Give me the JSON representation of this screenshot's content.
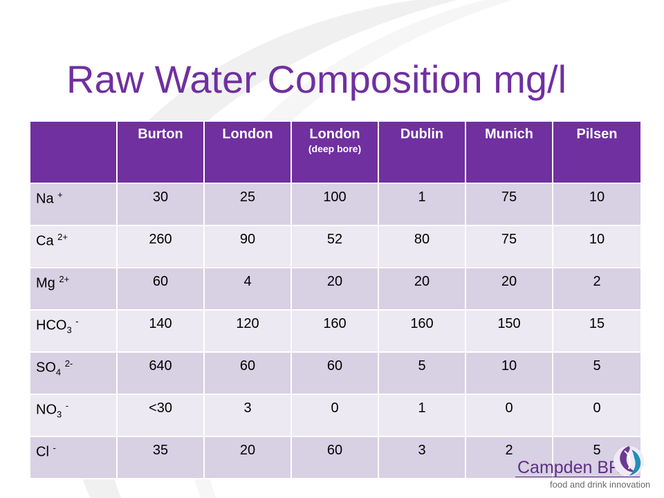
{
  "title": "Raw Water Composition mg/l",
  "header": {
    "corner": "",
    "columns": [
      {
        "label": "Burton",
        "sub": ""
      },
      {
        "label": "London",
        "sub": ""
      },
      {
        "label": "London",
        "sub": "(deep bore)"
      },
      {
        "label": "Dublin",
        "sub": ""
      },
      {
        "label": "Munich",
        "sub": ""
      },
      {
        "label": "Pilsen",
        "sub": ""
      }
    ]
  },
  "rows": [
    {
      "ion": {
        "base": "Na",
        "sub": "",
        "sup": "+"
      },
      "values": [
        "30",
        "25",
        "100",
        "1",
        "75",
        "10"
      ]
    },
    {
      "ion": {
        "base": "Ca",
        "sub": "",
        "sup": "2+"
      },
      "values": [
        "260",
        "90",
        "52",
        "80",
        "75",
        "10"
      ]
    },
    {
      "ion": {
        "base": "Mg",
        "sub": "",
        "sup": "2+"
      },
      "values": [
        "60",
        "4",
        "20",
        "20",
        "20",
        "2"
      ]
    },
    {
      "ion": {
        "base": "HCO",
        "sub": "3",
        "sup": "-"
      },
      "values": [
        "140",
        "120",
        "160",
        "160",
        "150",
        "15"
      ]
    },
    {
      "ion": {
        "base": "SO",
        "sub": "4",
        "sup": "2-"
      },
      "values": [
        "640",
        "60",
        "60",
        "5",
        "10",
        "5"
      ]
    },
    {
      "ion": {
        "base": "NO",
        "sub": "3",
        "sup": "-"
      },
      "values": [
        "<30",
        "3",
        "0",
        "1",
        "0",
        "0"
      ]
    },
    {
      "ion": {
        "base": "Cl",
        "sub": "",
        "sup": "-"
      },
      "values": [
        "35",
        "20",
        "60",
        "3",
        "2",
        "5"
      ]
    }
  ],
  "logo": {
    "name": "Campden BRI",
    "tagline": "food and drink innovation"
  },
  "colors": {
    "accent": "#7030a0",
    "row_odd": "#d8d0e3",
    "row_even": "#ede9f2"
  }
}
